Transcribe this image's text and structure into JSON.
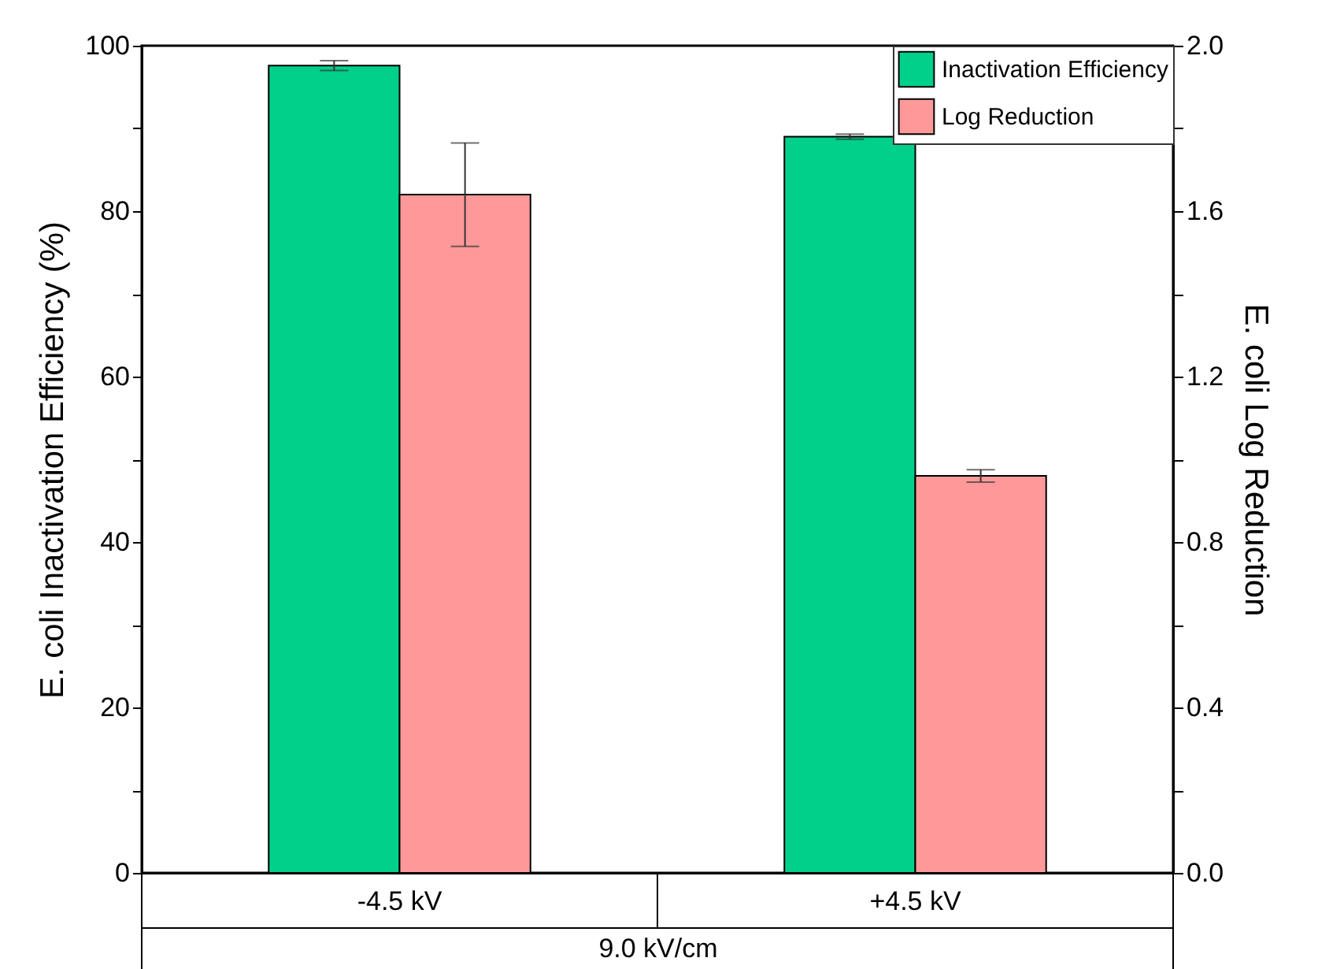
{
  "chart_data": {
    "type": "bar",
    "categories": [
      "-4.5 kV",
      "+4.5 kV"
    ],
    "xlabel": "9.0 kV/cm",
    "ylabel": "E. coli Inactivation Efficiency (%)",
    "y2label": "E. coli Log Reduction",
    "series": [
      {
        "name": "Inactivation Efficiency",
        "color": "#00d08a",
        "values": [
          97.6,
          89.0
        ],
        "errors": [
          0.6,
          0.3
        ]
      },
      {
        "name": "Log Reduction",
        "color": "#ff9999",
        "axis": "y2",
        "values": [
          1.64,
          0.96
        ],
        "errors": [
          0.125,
          0.015
        ]
      }
    ],
    "ylim": [
      0,
      100
    ],
    "yticks": [
      0,
      {
        "value": 10,
        "label": null
      },
      20,
      {
        "value": 30,
        "label": null
      },
      40,
      {
        "value": 50,
        "label": null
      },
      60,
      {
        "value": 70,
        "label": null
      },
      80,
      {
        "value": 90,
        "label": null
      },
      100
    ],
    "y2lim": [
      0,
      2.0
    ],
    "y2ticks": [
      {
        "value": 0,
        "label": "0.0"
      },
      {
        "value": 0.2,
        "label": null
      },
      {
        "value": 0.4,
        "label": "0.4"
      },
      {
        "value": 0.6,
        "label": null
      },
      {
        "value": 0.8,
        "label": "0.8"
      },
      {
        "value": 1.0,
        "label": null
      },
      {
        "value": 1.2,
        "label": "1.2"
      },
      {
        "value": 1.4,
        "label": null
      },
      {
        "value": 1.6,
        "label": "1.6"
      },
      {
        "value": 1.8,
        "label": null
      },
      {
        "value": 2.0,
        "label": "2.0"
      }
    ],
    "grid": false,
    "legend": "top right"
  }
}
